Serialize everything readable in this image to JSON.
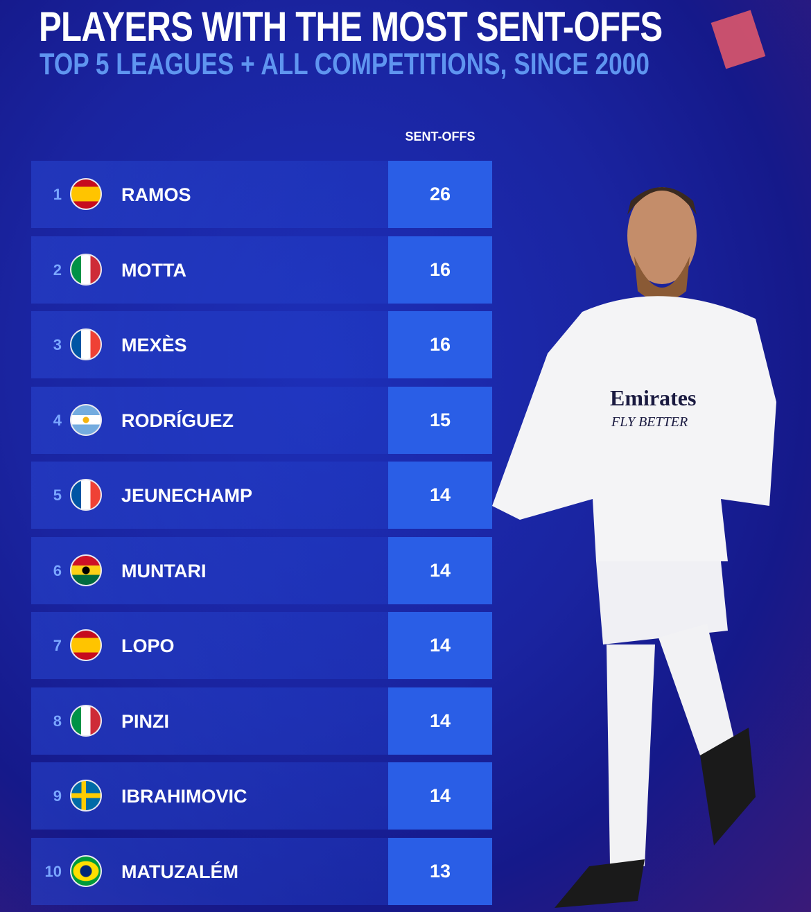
{
  "chart_data": {
    "type": "table",
    "title": "PLAYERS WITH THE MOST SENT-OFFS",
    "subtitle": "TOP 5 LEAGUES + ALL COMPETITIONS, SINCE 2000",
    "column_header": "SENT-OFFS",
    "rows": [
      {
        "rank": "1",
        "name": "RAMOS",
        "flag": "spain",
        "value": 26
      },
      {
        "rank": "2",
        "name": "MOTTA",
        "flag": "italy",
        "value": 16
      },
      {
        "rank": "3",
        "name": "MEXÈS",
        "flag": "france",
        "value": 16
      },
      {
        "rank": "4",
        "name": "RODRÍGUEZ",
        "flag": "argentina",
        "value": 15
      },
      {
        "rank": "5",
        "name": "JEUNECHAMP",
        "flag": "france",
        "value": 14
      },
      {
        "rank": "6",
        "name": "MUNTARI",
        "flag": "ghana",
        "value": 14
      },
      {
        "rank": "7",
        "name": "LOPO",
        "flag": "spain",
        "value": 14
      },
      {
        "rank": "8",
        "name": "PINZI",
        "flag": "italy",
        "value": 14
      },
      {
        "rank": "9",
        "name": "IBRAHIMOVIC",
        "flag": "sweden",
        "value": 14
      },
      {
        "rank": "10",
        "name": "MATUZALÉM",
        "flag": "brazil",
        "value": 13
      }
    ]
  },
  "colors": {
    "accent": "#2a5ee6",
    "subtitle": "#5f95f0",
    "rank": "#7aa6ff"
  },
  "photo": {
    "shirt_sponsor": "Emirates",
    "shirt_tagline": "FLY BETTER"
  }
}
